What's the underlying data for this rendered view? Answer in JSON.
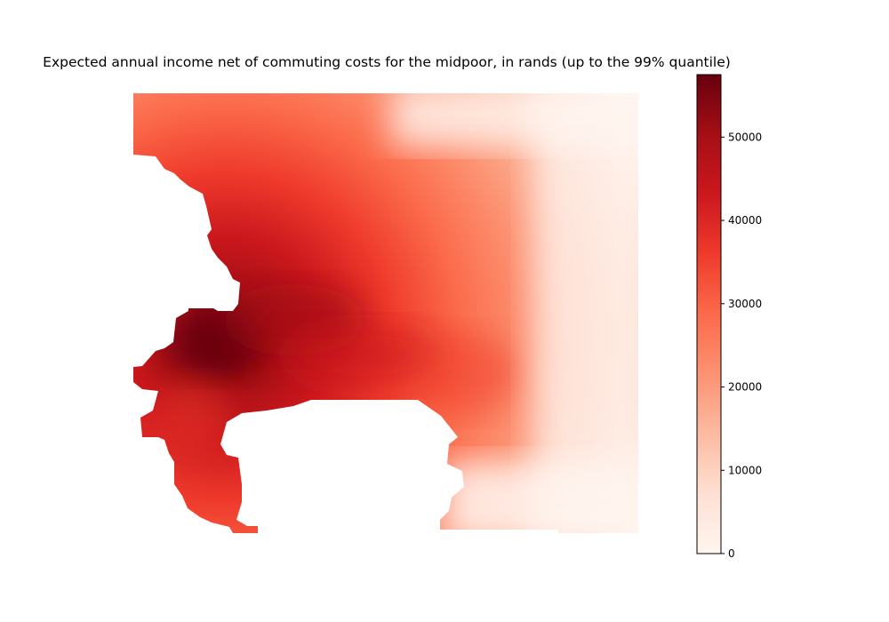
{
  "title": "Expected annual income net of commuting costs for the midpoor, in rands (up to the 99% quantile)",
  "colormap": {
    "name": "Reds",
    "stops": [
      "#fff5f0",
      "#fee0d2",
      "#fcbba1",
      "#fc9272",
      "#fb6a4a",
      "#ef3b2c",
      "#cb181d",
      "#a50f15",
      "#67000d"
    ]
  },
  "colorbar": {
    "min": 0,
    "max": 57500,
    "ticks": [
      0,
      10000,
      20000,
      30000,
      40000,
      50000
    ]
  }
}
